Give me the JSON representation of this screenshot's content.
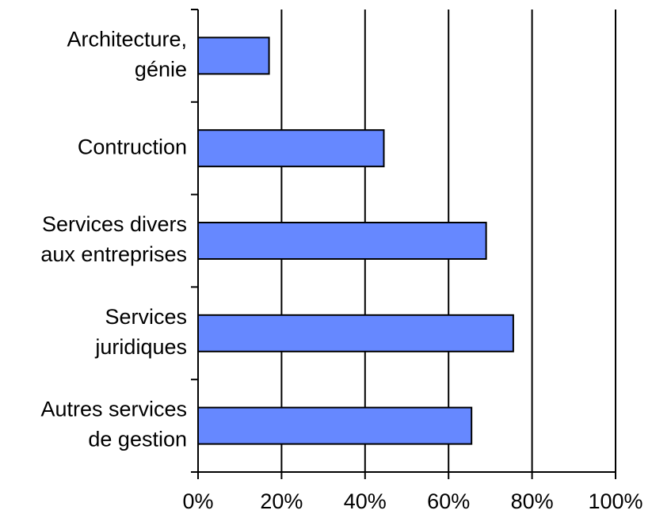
{
  "chart_data": {
    "type": "bar",
    "orientation": "horizontal",
    "categories": [
      [
        "Architecture,",
        "génie"
      ],
      [
        "Contruction"
      ],
      [
        "Services divers",
        "aux entreprises"
      ],
      [
        "Services",
        "juridiques"
      ],
      [
        "Autres services",
        "de gestion"
      ]
    ],
    "values": [
      17,
      44.5,
      69,
      75.5,
      65.5
    ],
    "xlim": [
      0,
      100
    ],
    "xticks": [
      "0%",
      "20%",
      "40%",
      "60%",
      "80%",
      "100%"
    ],
    "grid": "vertical",
    "title": "",
    "xlabel": "",
    "ylabel": "",
    "colors": {
      "bar_fill": "#6688ff",
      "bar_stroke": "#000000",
      "grid": "#000000"
    }
  }
}
